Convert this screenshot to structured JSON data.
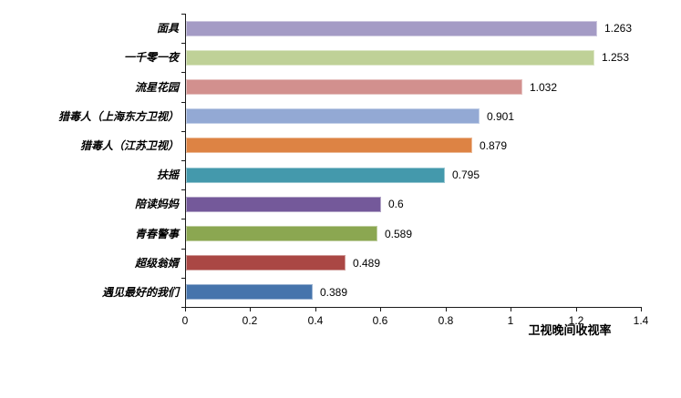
{
  "chart_data": {
    "type": "bar",
    "orientation": "horizontal",
    "title": "",
    "xlabel": "卫视晚间收视率",
    "ylabel": "",
    "categories": [
      "面具",
      "一千零一夜",
      "流星花园",
      "猎毒人（上海东方卫视）",
      "猎毒人（江苏卫视）",
      "扶摇",
      "陪读妈妈",
      "青春警事",
      "超级翁婿",
      "遇见最好的我们"
    ],
    "values": [
      1.263,
      1.253,
      1.032,
      0.901,
      0.879,
      0.795,
      0.6,
      0.589,
      0.489,
      0.389
    ],
    "value_labels": [
      "1.263",
      "1.253",
      "1.032",
      "0.901",
      "0.879",
      "0.795",
      "0.6",
      "0.589",
      "0.489",
      "0.389"
    ],
    "bar_colors": [
      "#A49BC5",
      "#BFD197",
      "#D2908E",
      "#93A9D4",
      "#DD8344",
      "#4499AC",
      "#74599A",
      "#8BA751",
      "#AA4744",
      "#4674AC"
    ],
    "xlim": [
      0,
      1.4
    ],
    "x_tick_labels": [
      "0",
      "0.2",
      "0.4",
      "0.6",
      "0.8",
      "1",
      "1.2",
      "1.4"
    ],
    "x_tick_values": [
      0,
      0.2,
      0.4,
      0.6,
      0.8,
      1.0,
      1.2,
      1.4
    ],
    "grid": false,
    "legend": "none",
    "axis_color": "#1a1a1a",
    "text_color": "#000000"
  }
}
